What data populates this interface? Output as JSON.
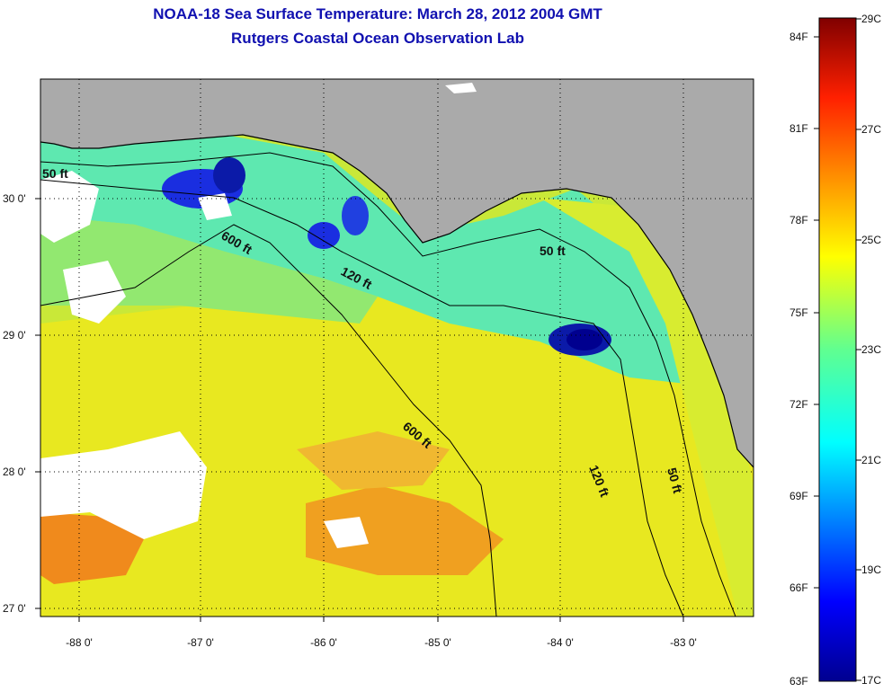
{
  "title_line1": "NOAA-18 Sea Surface Temperature:  March 28, 2012 2004 GMT",
  "title_line2": "Rutgers Coastal Ocean Observation Lab",
  "x_ticks": [
    "-88 0'",
    "-87 0'",
    "-86 0'",
    "-85 0'",
    "-84 0'",
    "-83 0'"
  ],
  "y_ticks": [
    "30 0'",
    "29 0'",
    "28 0'",
    "27 0'"
  ],
  "contour_labels": {
    "c50_west": "50 ft",
    "c600_north": "600 ft",
    "c120_north": "120 ft",
    "c50_east_top": "50 ft",
    "c600_south": "600 ft",
    "c120_south": "120 ft",
    "c50_south": "50 ft"
  },
  "colorbar": {
    "fahrenheit": [
      "84F",
      "81F",
      "78F",
      "75F",
      "72F",
      "69F",
      "66F",
      "63F"
    ],
    "celsius": [
      "29C",
      "27C",
      "25C",
      "23C",
      "21C",
      "19C",
      "17C"
    ]
  },
  "colors": {
    "land": "#aaaaaa",
    "cloud": "#ffffff",
    "water_base": "#a6e84e",
    "title": "#1010b0"
  }
}
